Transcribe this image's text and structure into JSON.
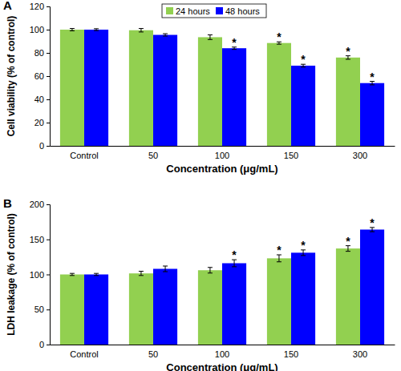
{
  "chart_data": [
    {
      "type": "bar",
      "panel": "A",
      "categories": [
        "Control",
        "50",
        "100",
        "150",
        "300"
      ],
      "x_label": "Concentration (μg/mL)",
      "y_label": "Cell viability (% of control)",
      "ylim": [
        0,
        120
      ],
      "yticks": [
        0,
        20,
        40,
        60,
        80,
        100,
        120
      ],
      "legend": "top",
      "series": [
        {
          "name": "24 hours",
          "color": "#92d050",
          "values": [
            100,
            99.5,
            93.5,
            88.5,
            76
          ],
          "errors": [
            1,
            1.5,
            2,
            1,
            1.5
          ],
          "annotations": [
            null,
            null,
            null,
            "*",
            "*"
          ]
        },
        {
          "name": "48 hours",
          "color": "#0000ff",
          "values": [
            100,
            95.5,
            84,
            69,
            54
          ],
          "errors": [
            0.8,
            1,
            1,
            1.2,
            1.5
          ],
          "annotations": [
            null,
            null,
            "*",
            "*",
            "*"
          ]
        }
      ]
    },
    {
      "type": "bar",
      "panel": "B",
      "categories": [
        "Control",
        "50",
        "100",
        "150",
        "300"
      ],
      "x_label": "Concentration (μg/mL)",
      "y_label": "LDH leakage (% of control)",
      "ylim": [
        0,
        200
      ],
      "yticks": [
        0,
        50,
        100,
        150,
        200
      ],
      "series": [
        {
          "color": "#92d050",
          "values": [
            100,
            101.5,
            106,
            123,
            137
          ],
          "errors": [
            1.5,
            3,
            4,
            5,
            4
          ],
          "annotations": [
            null,
            null,
            null,
            "*",
            "*"
          ]
        },
        {
          "color": "#0000ff",
          "values": [
            100,
            108,
            116,
            131,
            164
          ],
          "errors": [
            1.5,
            4,
            5,
            4,
            3
          ],
          "annotations": [
            null,
            null,
            "*",
            "*",
            "*"
          ]
        }
      ]
    }
  ]
}
